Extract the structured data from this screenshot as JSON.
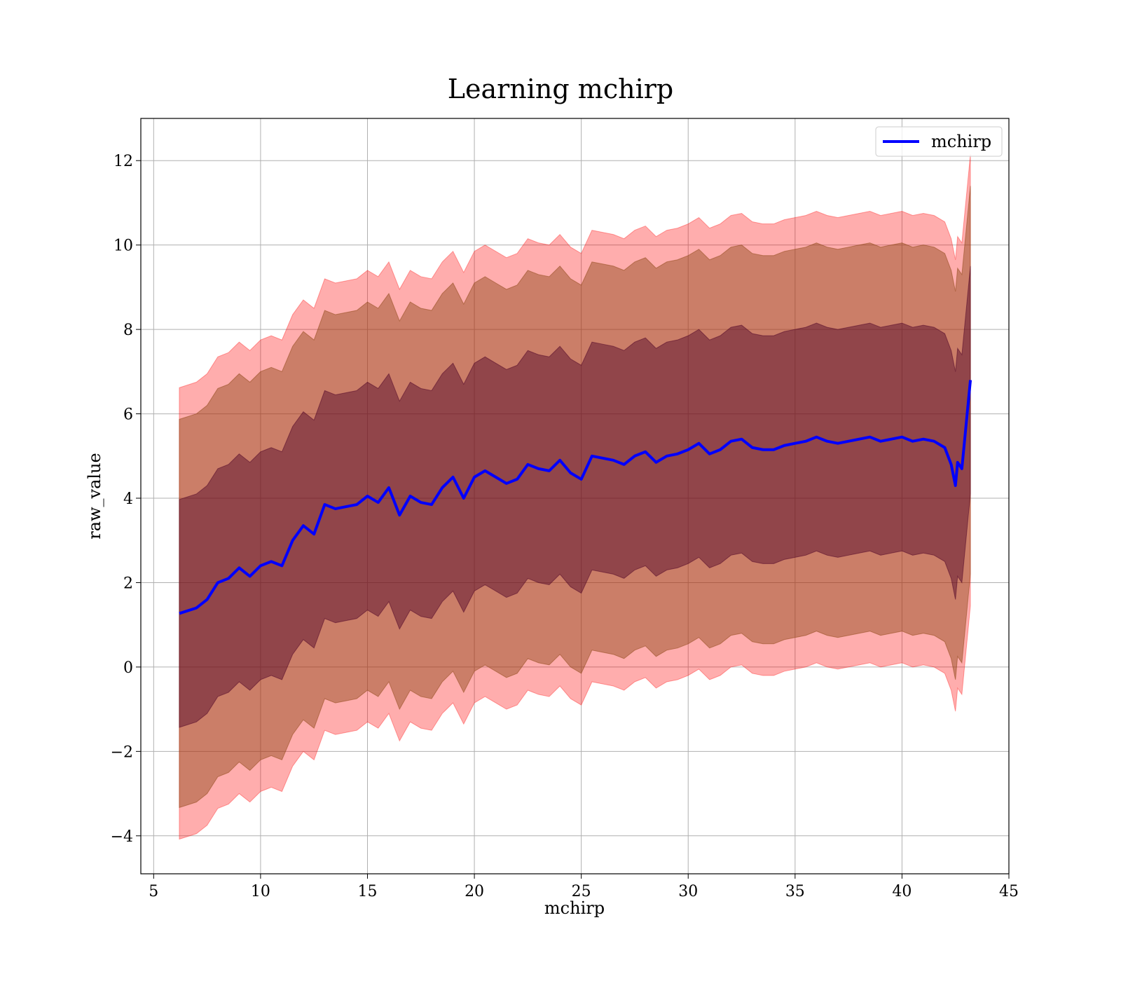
{
  "chart_data": {
    "type": "line",
    "title": "Learning mchirp",
    "xlabel": "mchirp",
    "ylabel": "raw_value",
    "xlim": [
      4.4,
      45
    ],
    "ylim": [
      -4.9,
      13.0
    ],
    "x_ticks": [
      5,
      10,
      15,
      20,
      25,
      30,
      35,
      40,
      45
    ],
    "y_ticks": [
      -4,
      -2,
      0,
      2,
      4,
      6,
      8,
      10,
      12
    ],
    "grid": true,
    "legend": {
      "position": "top-right",
      "entries": [
        "mchirp"
      ]
    },
    "colors": {
      "line": "#0000ff",
      "band_outer": "#ff0000",
      "band_middle": "#8b4513",
      "band_inner": "#4b0026"
    },
    "series": [
      {
        "name": "mchirp",
        "x": [
          6.2,
          7.0,
          7.5,
          8.0,
          8.5,
          9.0,
          9.5,
          10.0,
          10.5,
          11.0,
          11.5,
          12.0,
          12.5,
          13.0,
          13.5,
          14.0,
          14.5,
          15.0,
          15.5,
          16.0,
          16.5,
          17.0,
          17.5,
          18.0,
          18.5,
          19.0,
          19.5,
          20.0,
          20.5,
          21.0,
          21.5,
          22.0,
          22.5,
          23.0,
          23.5,
          24.0,
          24.5,
          25.0,
          25.5,
          26.0,
          26.5,
          27.0,
          27.5,
          28.0,
          28.5,
          29.0,
          29.5,
          30.0,
          30.5,
          31.0,
          31.5,
          32.0,
          32.5,
          33.0,
          33.5,
          34.0,
          34.5,
          35.0,
          35.5,
          36.0,
          36.5,
          37.0,
          37.5,
          38.0,
          38.5,
          39.0,
          39.5,
          40.0,
          40.5,
          41.0,
          41.5,
          42.0,
          42.3,
          42.5,
          42.6,
          42.8,
          43.2
        ],
        "y": [
          1.27,
          1.4,
          1.6,
          2.0,
          2.1,
          2.35,
          2.15,
          2.4,
          2.5,
          2.4,
          3.0,
          3.35,
          3.15,
          3.85,
          3.75,
          3.8,
          3.85,
          4.05,
          3.9,
          4.25,
          3.6,
          4.05,
          3.9,
          3.85,
          4.25,
          4.5,
          4.0,
          4.5,
          4.65,
          4.5,
          4.35,
          4.45,
          4.8,
          4.7,
          4.65,
          4.9,
          4.6,
          4.45,
          5.0,
          4.95,
          4.9,
          4.8,
          5.0,
          5.1,
          4.85,
          5.0,
          5.05,
          5.15,
          5.3,
          5.05,
          5.15,
          5.35,
          5.4,
          5.2,
          5.15,
          5.15,
          5.25,
          5.3,
          5.35,
          5.45,
          5.35,
          5.3,
          5.35,
          5.4,
          5.45,
          5.35,
          5.4,
          5.45,
          5.35,
          5.4,
          5.35,
          5.2,
          4.8,
          4.3,
          4.85,
          4.7,
          6.8
        ],
        "band_inner_halfwidth": 2.7,
        "band_middle_halfwidth": 4.6,
        "band_outer_halfwidth": 5.35
      }
    ]
  }
}
